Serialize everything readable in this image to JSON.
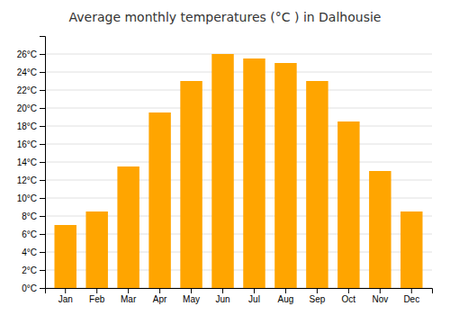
{
  "chart_data": {
    "type": "bar",
    "title": "Average monthly temperatures (°C ) in Dalhousie",
    "categories": [
      "Jan",
      "Feb",
      "Mar",
      "Apr",
      "May",
      "Jun",
      "Jul",
      "Aug",
      "Sep",
      "Oct",
      "Nov",
      "Dec"
    ],
    "values": [
      7,
      8.5,
      13.5,
      19.5,
      23,
      26,
      25.5,
      25,
      23,
      18.5,
      13,
      8.5
    ],
    "color": "#FFA500",
    "ylim": [
      0,
      28
    ],
    "yticks": [
      {
        "value": 0,
        "label": "0°C"
      },
      {
        "value": 2,
        "label": "2°C"
      },
      {
        "value": 4,
        "label": "4°C"
      },
      {
        "value": 6,
        "label": "6°C"
      },
      {
        "value": 8,
        "label": "8°C"
      },
      {
        "value": 10,
        "label": "10°C"
      },
      {
        "value": 12,
        "label": "12°C"
      },
      {
        "value": 14,
        "label": "14°C"
      },
      {
        "value": 16,
        "label": "16°C"
      },
      {
        "value": 18,
        "label": "18°C"
      },
      {
        "value": 20,
        "label": "20°C"
      },
      {
        "value": 22,
        "label": "22°C"
      },
      {
        "value": 24,
        "label": "24°C"
      },
      {
        "value": 26,
        "label": "26°C"
      }
    ],
    "grid": true
  }
}
